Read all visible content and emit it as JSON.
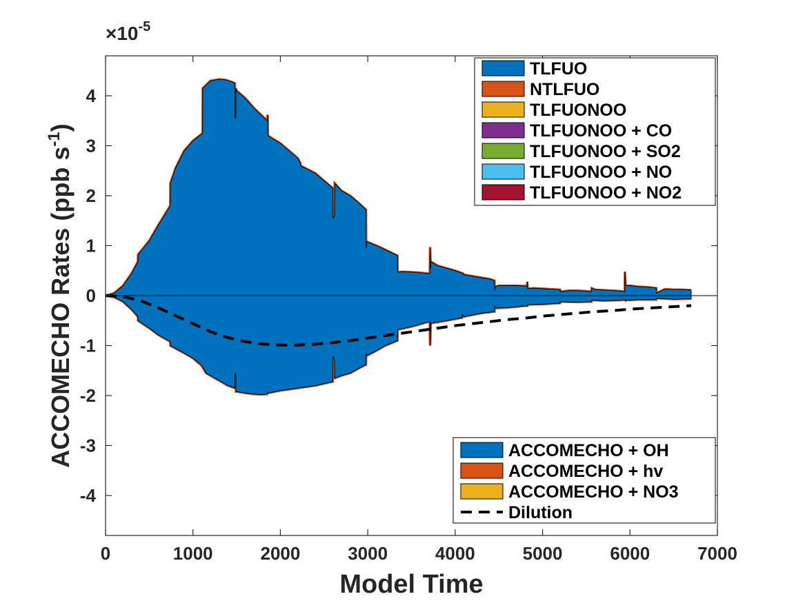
{
  "chart_data": {
    "type": "area",
    "xlabel": "Model Time",
    "ylabel_main": "ACCOMECHO Rates (ppb s",
    "ylabel_sup": "-1",
    "ylabel_close": ")",
    "y_exponent_prefix": "×10",
    "y_exponent_power": "-5",
    "xlim": [
      0,
      7000
    ],
    "ylim": [
      -4.8,
      4.8
    ],
    "y_scale": 1e-05,
    "xticks": [
      0,
      1000,
      2000,
      3000,
      4000,
      5000,
      6000,
      7000
    ],
    "xtick_labels": [
      "0",
      "1000",
      "2000",
      "3000",
      "4000",
      "5000",
      "6000",
      "7000"
    ],
    "yticks": [
      -4,
      -3,
      -2,
      -1,
      0,
      1,
      2,
      3,
      4
    ],
    "ytick_labels": [
      "-4",
      "-3",
      "-2",
      "-1",
      "0",
      "1",
      "2",
      "3",
      "4"
    ],
    "grid": false,
    "production_legend": {
      "placement": "top-right",
      "entries": [
        {
          "name": "TLFUO",
          "color": "#0072BD"
        },
        {
          "name": "NTLFUO",
          "color": "#D95319"
        },
        {
          "name": "TLFUONOO",
          "color": "#EDB120"
        },
        {
          "name": "TLFUONOO + CO",
          "color": "#7E2F8E"
        },
        {
          "name": "TLFUONOO + SO2",
          "color": "#77AC30"
        },
        {
          "name": "TLFUONOO + NO",
          "color": "#4DBEEE"
        },
        {
          "name": "TLFUONOO + NO2",
          "color": "#A2142F"
        }
      ]
    },
    "loss_legend": {
      "placement": "bottom-right",
      "entries": [
        {
          "name": "ACCOMECHO + OH",
          "color": "#0072BD",
          "style": "patch"
        },
        {
          "name": "ACCOMECHO + hv",
          "color": "#D95319",
          "style": "patch"
        },
        {
          "name": "ACCOMECHO + NO3",
          "color": "#EDB120",
          "style": "patch"
        },
        {
          "name": "Dilution",
          "color": "#000000",
          "style": "dashed-line"
        }
      ]
    },
    "production_series": {
      "name": "TLFUO",
      "color": "#0072BD",
      "x": [
        0,
        100,
        200,
        300,
        370,
        372,
        500,
        600,
        740,
        742,
        800,
        900,
        1000,
        1110,
        1112,
        1200,
        1300,
        1370,
        1440,
        1480,
        1482,
        1490,
        1492,
        1500,
        1600,
        1700,
        1850,
        1852,
        1855,
        1858,
        2000,
        2200,
        2230,
        2232,
        2400,
        2600,
        2602,
        2605,
        2620,
        2622,
        2700,
        2800,
        2900,
        2980,
        2982,
        2990,
        3100,
        3200,
        3340,
        3342,
        3400,
        3500,
        3600,
        3700,
        3710,
        3712,
        3715,
        3720,
        3722,
        3800,
        3900,
        4000,
        4080,
        4082,
        4085,
        4100,
        4200,
        4300,
        4400,
        4450,
        4452,
        4460,
        4500,
        4600,
        4700,
        4820,
        4822,
        4825,
        4830,
        4900,
        5000,
        5100,
        5200,
        5202,
        5300,
        5400,
        5500,
        5560,
        5562,
        5600,
        5700,
        5800,
        5900,
        5940,
        5942,
        5950,
        5960,
        6000,
        6100,
        6200,
        6300,
        6302,
        6400,
        6500,
        6600,
        6700
      ],
      "y": [
        0,
        0.05,
        0.2,
        0.45,
        0.68,
        0.82,
        1.1,
        1.4,
        1.8,
        2.25,
        2.55,
        2.9,
        3.1,
        3.25,
        4.15,
        4.3,
        4.33,
        4.32,
        4.28,
        4.25,
        3.55,
        3.55,
        4.15,
        4.1,
        3.95,
        3.75,
        3.5,
        3.6,
        3.6,
        3.2,
        3.05,
        2.75,
        2.65,
        2.6,
        2.45,
        2.15,
        1.55,
        1.55,
        1.6,
        2.25,
        2.1,
        2.0,
        1.85,
        1.72,
        0.95,
        1.08,
        1.0,
        0.92,
        0.8,
        0.47,
        0.48,
        0.47,
        0.46,
        0.44,
        0.44,
        0.95,
        0.95,
        0.55,
        0.68,
        0.6,
        0.55,
        0.5,
        0.45,
        0.45,
        0.45,
        0.42,
        0.39,
        0.36,
        0.33,
        0.3,
        0.1,
        0.18,
        0.2,
        0.2,
        0.2,
        0.19,
        0.19,
        0.28,
        0.14,
        0.15,
        0.14,
        0.13,
        0.12,
        0.08,
        0.1,
        0.1,
        0.09,
        0.08,
        0.15,
        0.12,
        0.11,
        0.1,
        0.09,
        0.08,
        0.48,
        0.2,
        0.2,
        0.2,
        0.18,
        0.17,
        0.15,
        0.05,
        0.13,
        0.12,
        0.12,
        0.11
      ]
    },
    "loss_series": {
      "name": "ACCOMECHO + OH",
      "color": "#0072BD",
      "x": [
        0,
        100,
        200,
        300,
        370,
        372,
        500,
        600,
        740,
        742,
        900,
        1000,
        1100,
        1150,
        1300,
        1400,
        1480,
        1482,
        1485,
        1490,
        1492,
        1500,
        1600,
        1700,
        1780,
        1850,
        1852,
        1855,
        2000,
        2200,
        2400,
        2600,
        2602,
        2605,
        2620,
        2622,
        2700,
        2800,
        2900,
        2980,
        2982,
        2990,
        3100,
        3200,
        3340,
        3342,
        3500,
        3700,
        3710,
        3712,
        3715,
        3720,
        3722,
        3900,
        4080,
        4082,
        4085,
        4100,
        4300,
        4450,
        4452,
        4460,
        4600,
        4820,
        4822,
        4825,
        4830,
        5000,
        5200,
        5202,
        5400,
        5560,
        5562,
        5700,
        5900,
        5940,
        5942,
        5950,
        5960,
        6100,
        6300,
        6302,
        6500,
        6700
      ],
      "y": [
        0,
        -0.03,
        -0.12,
        -0.28,
        -0.42,
        -0.5,
        -0.65,
        -0.78,
        -0.92,
        -1.0,
        -1.15,
        -1.25,
        -1.4,
        -1.55,
        -1.7,
        -1.8,
        -1.85,
        -1.55,
        -1.55,
        -1.6,
        -1.92,
        -1.92,
        -1.95,
        -1.97,
        -1.98,
        -1.97,
        -1.92,
        -1.95,
        -1.9,
        -1.85,
        -1.8,
        -1.72,
        -1.22,
        -1.22,
        -1.3,
        -1.65,
        -1.6,
        -1.55,
        -1.45,
        -1.38,
        -1.15,
        -1.2,
        -1.1,
        -1.0,
        -0.9,
        -0.68,
        -0.62,
        -0.52,
        -0.52,
        -0.98,
        -0.98,
        -0.62,
        -0.55,
        -0.5,
        -0.44,
        -0.38,
        -0.38,
        -0.42,
        -0.35,
        -0.32,
        -0.2,
        -0.25,
        -0.24,
        -0.2,
        -0.2,
        -0.22,
        -0.18,
        -0.17,
        -0.15,
        -0.12,
        -0.13,
        -0.12,
        -0.09,
        -0.1,
        -0.09,
        -0.08,
        -0.08,
        -0.1,
        -0.09,
        -0.08,
        -0.08,
        -0.05,
        -0.07,
        -0.06
      ]
    },
    "dilution_series": {
      "name": "Dilution",
      "color": "#000000",
      "x": [
        0,
        200,
        400,
        600,
        800,
        1000,
        1200,
        1400,
        1600,
        1800,
        2000,
        2200,
        2400,
        2600,
        2800,
        3000,
        3200,
        3400,
        3600,
        3800,
        4000,
        4200,
        4400,
        4600,
        4800,
        5000,
        5200,
        5400,
        5600,
        5800,
        6000,
        6200,
        6400,
        6600,
        6700
      ],
      "y": [
        0,
        -0.02,
        -0.1,
        -0.24,
        -0.4,
        -0.56,
        -0.72,
        -0.84,
        -0.92,
        -0.97,
        -0.99,
        -0.99,
        -0.97,
        -0.94,
        -0.9,
        -0.85,
        -0.8,
        -0.75,
        -0.7,
        -0.65,
        -0.6,
        -0.56,
        -0.52,
        -0.48,
        -0.45,
        -0.41,
        -0.38,
        -0.35,
        -0.32,
        -0.3,
        -0.27,
        -0.25,
        -0.23,
        -0.21,
        -0.2
      ]
    }
  }
}
